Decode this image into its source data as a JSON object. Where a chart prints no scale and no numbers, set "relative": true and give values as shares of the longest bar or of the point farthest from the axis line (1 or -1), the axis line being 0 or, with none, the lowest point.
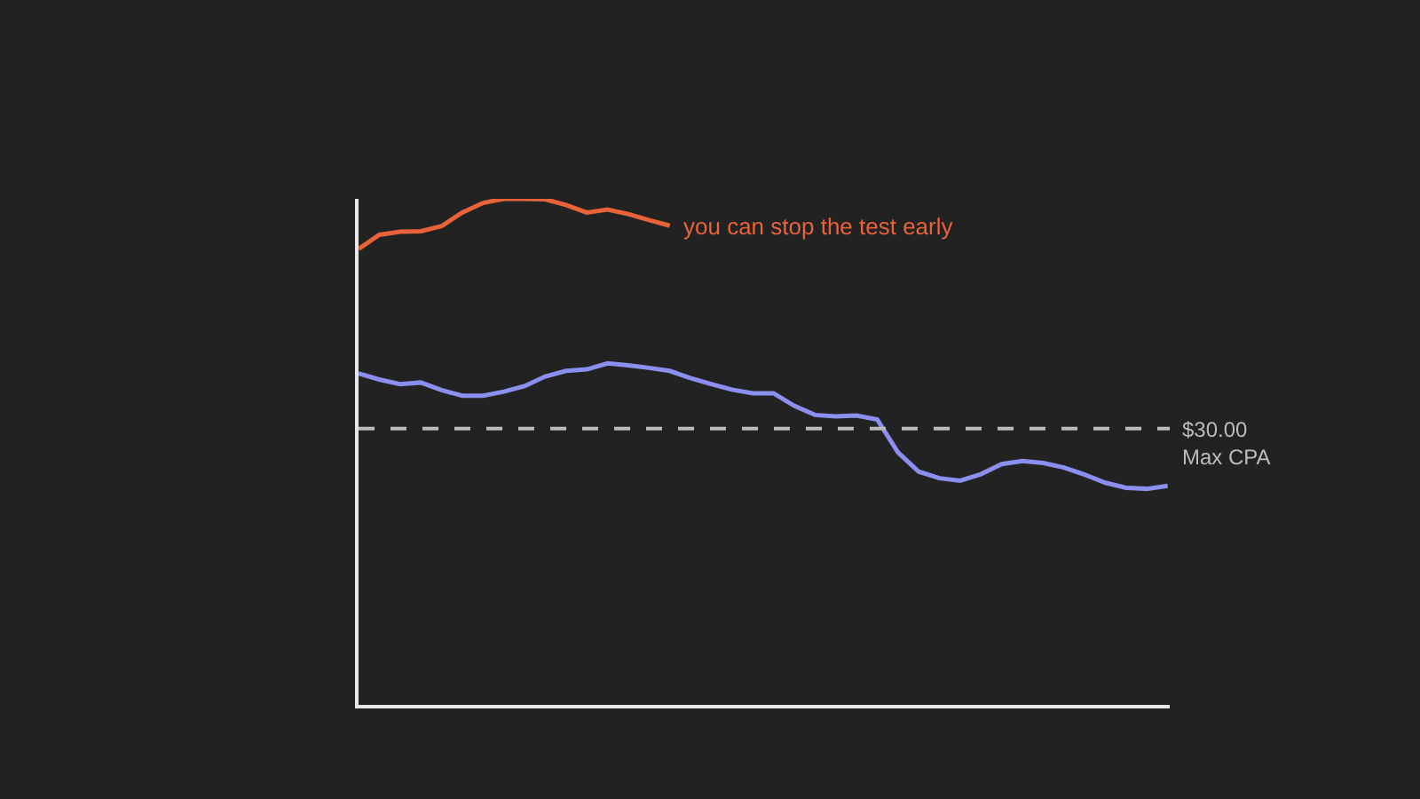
{
  "chart_data": {
    "type": "line",
    "relative": true,
    "categories": [
      null,
      null,
      null,
      null,
      null,
      null,
      null,
      null,
      null,
      null,
      null,
      null,
      null,
      null,
      null,
      null,
      null,
      null,
      null,
      null,
      null,
      null,
      null,
      null,
      null,
      null,
      null,
      null,
      null,
      null,
      null,
      null,
      null,
      null,
      null,
      null,
      null,
      null,
      null,
      null
    ],
    "series": [
      {
        "color": "#e8623a",
        "values": [
          0.901,
          0.929,
          0.935,
          0.936,
          0.946,
          0.973,
          0.992,
          1.0,
          1.0,
          0.999,
          0.988,
          0.973,
          0.979,
          0.97,
          0.958,
          0.947,
          null,
          null,
          null,
          null,
          null,
          null,
          null,
          null,
          null,
          null,
          null,
          null,
          null,
          null,
          null,
          null,
          null,
          null,
          null,
          null,
          null,
          null,
          null,
          null
        ]
      },
      {
        "color": "#8a8ff0",
        "values": [
          0.655,
          0.643,
          0.634,
          0.637,
          0.622,
          0.611,
          0.611,
          0.619,
          0.63,
          0.649,
          0.66,
          0.663,
          0.675,
          0.671,
          0.666,
          0.66,
          0.646,
          0.634,
          0.623,
          0.616,
          0.616,
          0.591,
          0.573,
          0.57,
          0.572,
          0.564,
          0.499,
          0.461,
          0.448,
          0.443,
          0.456,
          0.476,
          0.482,
          0.478,
          0.469,
          0.455,
          0.439,
          0.429,
          0.427,
          0.433
        ]
      }
    ],
    "ref_lines": [
      {
        "axis": "y",
        "value": 0.546,
        "label": "$30.00\nMax CPA",
        "color": "#bbbbbb",
        "line_style": "dashed"
      }
    ],
    "annotations": [
      "you can stop the test early"
    ],
    "marker": "none",
    "line_style": "solid"
  }
}
